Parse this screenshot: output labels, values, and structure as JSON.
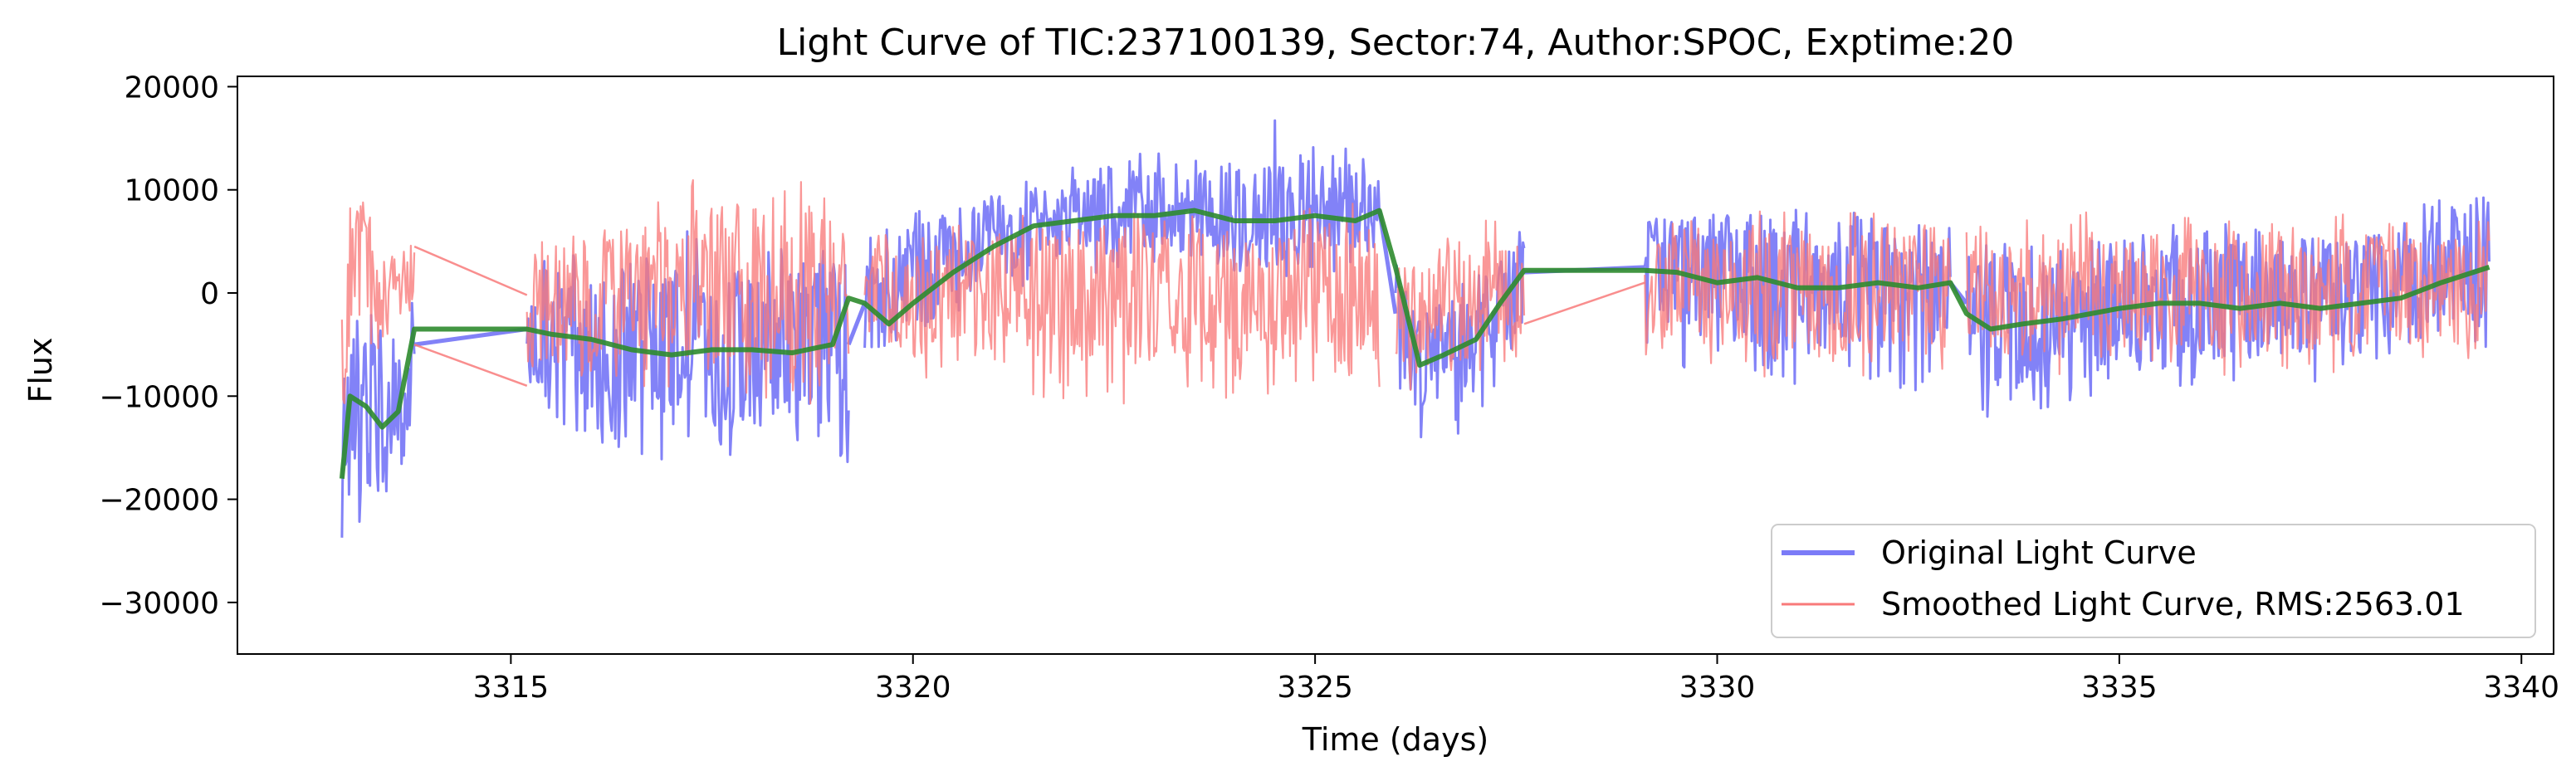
{
  "chart_data": {
    "type": "line",
    "title": "Light Curve of TIC:237100139, Sector:74, Author:SPOC, Exptime:20",
    "xlabel": "Time (days)",
    "ylabel": "Flux",
    "xlim": [
      3311.6,
      3340.4
    ],
    "ylim": [
      -35000,
      21000
    ],
    "xticks": [
      3315,
      3320,
      3325,
      3330,
      3335,
      3340
    ],
    "yticks": [
      -30000,
      -20000,
      -10000,
      0,
      10000,
      20000
    ],
    "xtick_labels": [
      "3315",
      "3320",
      "3325",
      "3330",
      "3335",
      "3340"
    ],
    "ytick_labels": [
      "−30000",
      "−20000",
      "−10000",
      "0",
      "10000",
      "20000"
    ],
    "grid": false,
    "legend_position": "lower-right",
    "series": [
      {
        "name": "Original Light Curve",
        "color": "#7b7bf7",
        "style": "noisy-band",
        "segments": [
          {
            "x": [
              3312.9,
              3313.0,
              3313.2,
              3313.4,
              3313.6,
              3313.8
            ],
            "center": [
              -18000,
              -10000,
              -11000,
              -13000,
              -11500,
              -5000
            ],
            "lower": [
              -32000,
              -22000,
              -23000,
              -21000,
              -18000,
              -12000
            ],
            "upper": [
              -5000,
              2000,
              0,
              -3000,
              -4000,
              1000
            ]
          },
          {
            "x": [
              3315.2,
              3315.8,
              3316.5,
              3317.2,
              3318.0,
              3318.8,
              3319.2
            ],
            "center": [
              -3500,
              -4500,
              -5500,
              -6000,
              -5500,
              -5500,
              -5000
            ],
            "lower": [
              -9000,
              -14000,
              -16000,
              -17000,
              -16000,
              -17000,
              -18000
            ],
            "upper": [
              3000,
              4000,
              5000,
              6000,
              6000,
              5000,
              7000
            ]
          },
          {
            "x": [
              3319.4,
              3320.0,
              3320.8,
              3321.5,
              3322.3,
              3323.0,
              3323.8,
              3324.5,
              3325.2,
              3325.8
            ],
            "center": [
              -1000,
              1500,
              4500,
              7000,
              7500,
              8000,
              8000,
              7500,
              8000,
              8000
            ],
            "lower": [
              -9000,
              -6500,
              -3000,
              1000,
              2000,
              2500,
              2000,
              1500,
              2000,
              2000
            ],
            "upper": [
              5000,
              8000,
              10000,
              11000,
              13000,
              14000,
              15000,
              17000,
              14000,
              15000
            ]
          },
          {
            "x": [
              3326.0,
              3326.3,
              3326.6,
              3327.0,
              3327.6
            ],
            "center": [
              -2000,
              -7000,
              -6000,
              -5000,
              2000
            ],
            "lower": [
              -10000,
              -14000,
              -15000,
              -12000,
              -6000
            ],
            "upper": [
              3000,
              0,
              0,
              2000,
              7000
            ]
          },
          {
            "x": [
              3329.1,
              3329.8,
              3330.5,
              3331.2,
              3332.0,
              3332.9
            ],
            "center": [
              2500,
              2000,
              1000,
              500,
              1000,
              1000
            ],
            "lower": [
              -6000,
              -8000,
              -9000,
              -10000,
              -10000,
              -9000
            ],
            "upper": [
              8000,
              9000,
              9000,
              8000,
              8000,
              7000
            ]
          },
          {
            "x": [
              3333.1,
              3333.6,
              3334.3,
              3335.0,
              3336.0,
              3337.0,
              3338.0,
              3339.0,
              3339.6
            ],
            "center": [
              -1000,
              -4000,
              -3000,
              -1500,
              -1000,
              -500,
              0,
              1500,
              3000
            ],
            "lower": [
              -13000,
              -12000,
              -11000,
              -9000,
              -9000,
              -9000,
              -8000,
              -7000,
              -6000
            ],
            "upper": [
              6000,
              5000,
              6000,
              6000,
              7000,
              7000,
              8000,
              9000,
              10000
            ]
          }
        ]
      },
      {
        "name": "Smoothed Light Curve, RMS:2563.01",
        "color": "#f87a7a",
        "style": "noisy-band",
        "segments": [
          {
            "x": [
              3312.9,
              3313.0,
              3313.2,
              3313.4,
              3313.6,
              3313.8
            ],
            "center": [
              -5000,
              3000,
              2000,
              0,
              1000,
              2000
            ],
            "lower": [
              -15000,
              -6000,
              -5000,
              -6000,
              -4000,
              -2000
            ],
            "upper": [
              11000,
              14000,
              8000,
              7000,
              7000,
              6000
            ]
          },
          {
            "x": [
              3315.2,
              3315.8,
              3316.5,
              3317.2,
              3318.0,
              3318.8,
              3319.2
            ],
            "center": [
              -2000,
              -1000,
              0,
              1000,
              1000,
              0,
              0
            ],
            "lower": [
              -9000,
              -9000,
              -9000,
              -10000,
              -10000,
              -11000,
              -12000
            ],
            "upper": [
              6000,
              7000,
              9000,
              11000,
              12000,
              11000,
              8000
            ]
          },
          {
            "x": [
              3319.4,
              3320.0,
              3320.8,
              3321.5,
              3322.3,
              3323.0,
              3323.8,
              3324.5,
              3325.2,
              3325.8
            ],
            "center": [
              0,
              -1000,
              -500,
              0,
              0,
              0,
              0,
              0,
              0,
              0
            ],
            "lower": [
              -7000,
              -8000,
              -10000,
              -10000,
              -11000,
              -11000,
              -11000,
              -10000,
              -10000,
              -10000
            ],
            "upper": [
              6000,
              6000,
              7000,
              8000,
              8000,
              8000,
              8000,
              8000,
              9000,
              9000
            ]
          },
          {
            "x": [
              3326.0,
              3326.3,
              3326.6,
              3327.0,
              3327.6
            ],
            "center": [
              -2000,
              -3000,
              -2000,
              -1000,
              1000
            ],
            "lower": [
              -9000,
              -10000,
              -9000,
              -8000,
              -6000
            ],
            "upper": [
              4000,
              5000,
              6000,
              7000,
              8000
            ]
          },
          {
            "x": [
              3329.1,
              3329.8,
              3330.5,
              3331.2,
              3332.0,
              3332.9
            ],
            "center": [
              0,
              0,
              0,
              0,
              0,
              0
            ],
            "lower": [
              -7000,
              -8000,
              -8000,
              -9000,
              -9000,
              -8000
            ],
            "upper": [
              6000,
              8000,
              8000,
              8000,
              8000,
              7000
            ]
          },
          {
            "x": [
              3333.1,
              3333.6,
              3334.3,
              3335.0,
              3336.0,
              3337.0,
              3338.0,
              3339.0,
              3339.6
            ],
            "center": [
              0,
              0,
              0,
              0,
              0,
              0,
              0,
              0,
              0
            ],
            "lower": [
              -7000,
              -7000,
              -8000,
              -8000,
              -8000,
              -8000,
              -8000,
              -7000,
              -7000
            ],
            "upper": [
              7000,
              7000,
              8000,
              8000,
              8000,
              8000,
              8000,
              8000,
              9000
            ]
          }
        ],
        "gap_connectors": [
          {
            "x": [
              3313.8,
              3315.2
            ],
            "y": [
              4500,
              -200
            ]
          },
          {
            "x": [
              3313.8,
              3315.2
            ],
            "y": [
              -5000,
              -9000
            ]
          },
          {
            "x": [
              3327.6,
              3329.1
            ],
            "y": [
              -3000,
              1000
            ]
          }
        ]
      },
      {
        "name": "",
        "color": "#2e8b2e",
        "style": "line",
        "x": [
          3312.9,
          3313.0,
          3313.2,
          3313.4,
          3313.6,
          3313.8,
          3315.2,
          3315.5,
          3316.0,
          3316.5,
          3317.0,
          3317.5,
          3318.0,
          3318.5,
          3319.0,
          3319.2,
          3319.4,
          3319.7,
          3320.0,
          3320.5,
          3321.0,
          3321.5,
          3322.0,
          3322.5,
          3323.0,
          3323.5,
          3324.0,
          3324.5,
          3325.0,
          3325.5,
          3325.8,
          3326.0,
          3326.3,
          3326.6,
          3327.0,
          3327.3,
          3327.6,
          3329.1,
          3329.5,
          3330.0,
          3330.5,
          3331.0,
          3331.5,
          3332.0,
          3332.5,
          3332.9,
          3333.1,
          3333.4,
          3333.8,
          3334.3,
          3335.0,
          3335.5,
          3336.0,
          3336.5,
          3337.0,
          3337.5,
          3338.0,
          3338.5,
          3339.0,
          3339.6
        ],
        "y": [
          -18000,
          -10000,
          -11000,
          -13000,
          -11500,
          -3500,
          -3500,
          -4000,
          -4500,
          -5500,
          -6000,
          -5500,
          -5500,
          -5800,
          -5000,
          -500,
          -1000,
          -3000,
          -1000,
          2000,
          4500,
          6500,
          7000,
          7500,
          7500,
          8000,
          7000,
          7000,
          7500,
          7000,
          8000,
          2500,
          -7000,
          -6000,
          -4500,
          -1000,
          2200,
          2200,
          2000,
          1000,
          1500,
          500,
          500,
          1000,
          500,
          1000,
          -2000,
          -3500,
          -3000,
          -2500,
          -1500,
          -1000,
          -1000,
          -1500,
          -1000,
          -1500,
          -1000,
          -500,
          1000,
          2500
        ]
      }
    ]
  }
}
